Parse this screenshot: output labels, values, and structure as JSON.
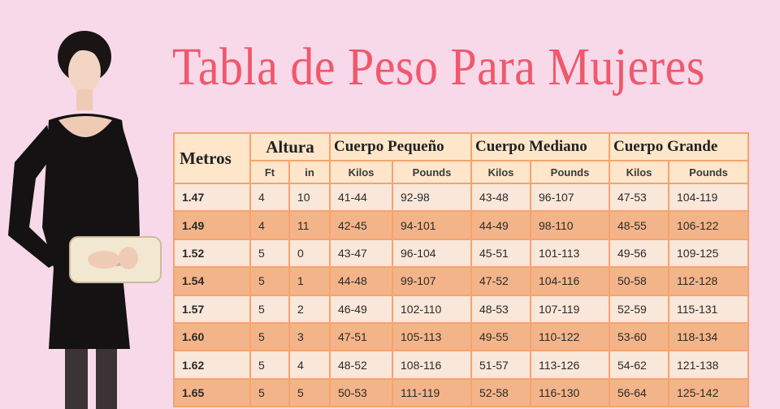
{
  "title": "Tabla de Peso Para Mujeres",
  "table": {
    "metros_header": "Metros",
    "altura_header": "Altura",
    "groups": [
      "Cuerpo Pequeño",
      "Cuerpo Mediano",
      "Cuerpo Grande"
    ],
    "sub": {
      "ft": "Ft",
      "in": "in",
      "kilos1": "Kilos",
      "pounds1": "Pounds",
      "kilos2": "Kilos",
      "pounds2": "Pounds",
      "kilos3": "Kilos",
      "pounds3": "Pounds"
    },
    "rows": [
      [
        "1.47",
        "4",
        "10",
        "41-44",
        "92-98",
        "43-48",
        "96-107",
        "47-53",
        "104-119"
      ],
      [
        "1.49",
        "4",
        "11",
        "42-45",
        "94-101",
        "44-49",
        "98-110",
        "48-55",
        "106-122"
      ],
      [
        "1.52",
        "5",
        "0",
        "43-47",
        "96-104",
        "45-51",
        "101-113",
        "49-56",
        "109-125"
      ],
      [
        "1.54",
        "5",
        "1",
        "44-48",
        "99-107",
        "47-52",
        "104-116",
        "50-58",
        "112-128"
      ],
      [
        "1.57",
        "5",
        "2",
        "46-49",
        "102-110",
        "48-53",
        "107-119",
        "52-59",
        "115-131"
      ],
      [
        "1.60",
        "5",
        "3",
        "47-51",
        "105-113",
        "49-55",
        "110-122",
        "53-60",
        "118-134"
      ],
      [
        "1.62",
        "5",
        "4",
        "48-52",
        "108-116",
        "51-57",
        "113-126",
        "54-62",
        "121-138"
      ],
      [
        "1.65",
        "5",
        "5",
        "50-53",
        "111-119",
        "52-58",
        "116-130",
        "56-64",
        "125-142"
      ]
    ]
  },
  "colors": {
    "background": "#f7d9ea",
    "title": "#f0586c",
    "border": "#f6a36f",
    "row_dark": "#f4b489",
    "row_light": "#f9e7da"
  }
}
